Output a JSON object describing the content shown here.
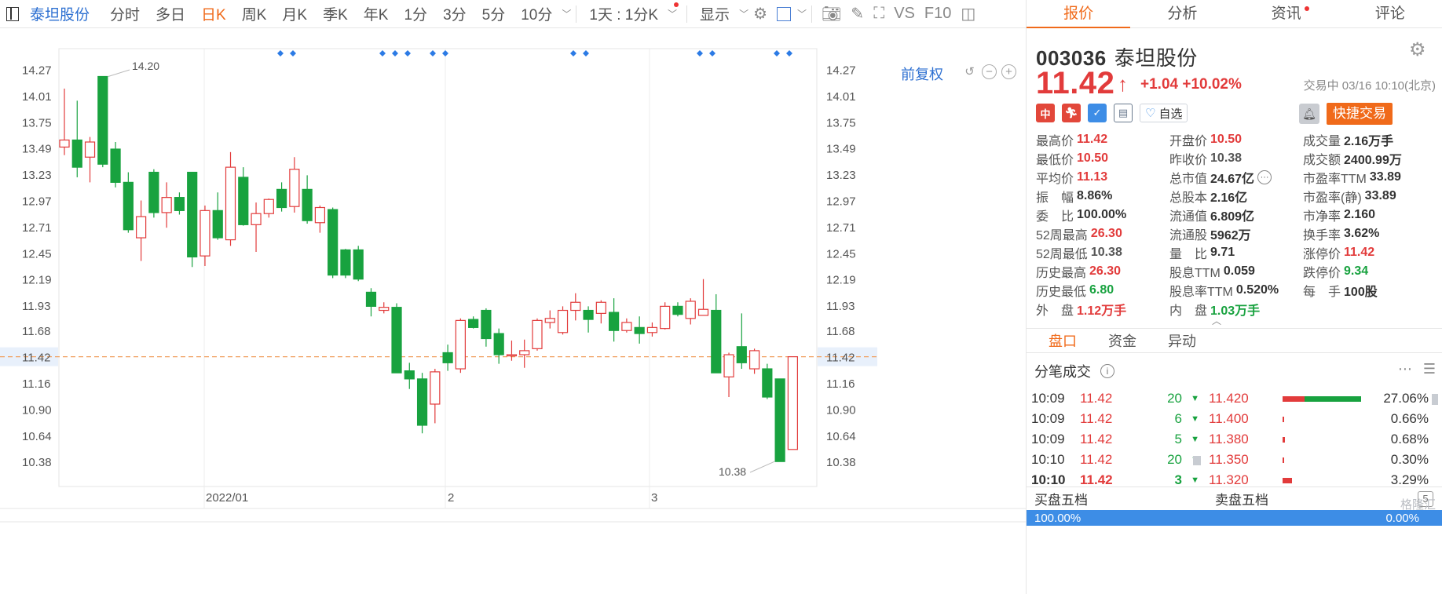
{
  "toolbar": {
    "stock_name": "泰坦股份",
    "periods": [
      "分时",
      "多日",
      "日K",
      "周K",
      "月K",
      "季K",
      "年K",
      "1分",
      "3分",
      "5分",
      "10分"
    ],
    "active_period": "日K",
    "range_select": "1天 : 1分K",
    "display": "显示",
    "vs": "VS",
    "f10": "F10"
  },
  "chart": {
    "adjust_label": "前复权",
    "high_annotation": "14.20",
    "low_annotation": "10.38",
    "current_price_label": "11.42",
    "y_ticks": [
      "14.27",
      "14.01",
      "13.75",
      "13.49",
      "13.23",
      "12.97",
      "12.71",
      "12.45",
      "12.19",
      "11.93",
      "11.68",
      "11.42",
      "11.16",
      "10.90",
      "10.64",
      "10.38"
    ],
    "x_labels": [
      "2022/01",
      "2",
      "3"
    ],
    "colors": {
      "up": "#e23b3b",
      "down": "#18a23f",
      "marker": "#2c7be5",
      "dash": "#f0a060"
    }
  },
  "chart_data": {
    "type": "candlestick",
    "ylim": [
      10.2,
      14.45
    ],
    "x_labels": [
      "2022/01",
      "2",
      "3"
    ],
    "candles": [
      {
        "o": 13.5,
        "c": 13.57,
        "h": 14.08,
        "l": 13.42
      },
      {
        "o": 13.57,
        "c": 13.3,
        "h": 13.96,
        "l": 13.2
      },
      {
        "o": 13.4,
        "c": 13.55,
        "h": 13.6,
        "l": 13.15
      },
      {
        "o": 14.2,
        "c": 13.33,
        "h": 14.2,
        "l": 13.3
      },
      {
        "o": 13.48,
        "c": 13.15,
        "h": 13.55,
        "l": 13.1
      },
      {
        "o": 13.15,
        "c": 12.68,
        "h": 13.25,
        "l": 12.65
      },
      {
        "o": 12.6,
        "c": 12.81,
        "h": 12.97,
        "l": 12.37
      },
      {
        "o": 13.25,
        "c": 12.85,
        "h": 13.28,
        "l": 12.8
      },
      {
        "o": 12.85,
        "c": 13.0,
        "h": 13.15,
        "l": 12.7
      },
      {
        "o": 13.0,
        "c": 12.87,
        "h": 13.05,
        "l": 12.83
      },
      {
        "o": 13.25,
        "c": 12.41,
        "h": 13.25,
        "l": 12.31
      },
      {
        "o": 12.42,
        "c": 12.87,
        "h": 12.92,
        "l": 12.32
      },
      {
        "o": 12.87,
        "c": 12.6,
        "h": 13.05,
        "l": 12.58
      },
      {
        "o": 12.58,
        "c": 13.3,
        "h": 13.45,
        "l": 12.52
      },
      {
        "o": 13.2,
        "c": 12.73,
        "h": 13.3,
        "l": 12.72
      },
      {
        "o": 12.73,
        "c": 12.84,
        "h": 12.95,
        "l": 12.46
      },
      {
        "o": 12.84,
        "c": 12.98,
        "h": 12.99,
        "l": 12.8
      },
      {
        "o": 13.08,
        "c": 12.9,
        "h": 13.15,
        "l": 12.86
      },
      {
        "o": 12.91,
        "c": 13.28,
        "h": 13.4,
        "l": 12.85
      },
      {
        "o": 13.08,
        "c": 12.77,
        "h": 13.22,
        "l": 12.74
      },
      {
        "o": 12.75,
        "c": 12.9,
        "h": 12.92,
        "l": 12.65
      },
      {
        "o": 12.88,
        "c": 12.23,
        "h": 12.9,
        "l": 12.2
      },
      {
        "o": 12.48,
        "c": 12.23,
        "h": 12.49,
        "l": 12.2
      },
      {
        "o": 12.48,
        "c": 12.19,
        "h": 12.52,
        "l": 12.17
      },
      {
        "o": 12.06,
        "c": 11.92,
        "h": 12.1,
        "l": 11.82
      },
      {
        "o": 11.88,
        "c": 11.91,
        "h": 11.96,
        "l": 11.85
      },
      {
        "o": 11.91,
        "c": 11.26,
        "h": 11.95,
        "l": 11.26
      },
      {
        "o": 11.28,
        "c": 11.2,
        "h": 11.36,
        "l": 11.1
      },
      {
        "o": 11.2,
        "c": 10.74,
        "h": 11.26,
        "l": 10.66
      },
      {
        "o": 10.95,
        "c": 11.27,
        "h": 11.3,
        "l": 10.76
      },
      {
        "o": 11.46,
        "c": 11.36,
        "h": 11.54,
        "l": 11.28
      },
      {
        "o": 11.3,
        "c": 11.78,
        "h": 11.8,
        "l": 11.26
      },
      {
        "o": 11.79,
        "c": 11.71,
        "h": 11.82,
        "l": 11.7
      },
      {
        "o": 11.88,
        "c": 11.6,
        "h": 11.9,
        "l": 11.52
      },
      {
        "o": 11.65,
        "c": 11.44,
        "h": 11.7,
        "l": 11.35
      },
      {
        "o": 11.44,
        "c": 11.44,
        "h": 11.58,
        "l": 11.38
      },
      {
        "o": 11.44,
        "c": 11.48,
        "h": 11.59,
        "l": 11.31
      },
      {
        "o": 11.5,
        "c": 11.78,
        "h": 11.8,
        "l": 11.48
      },
      {
        "o": 11.76,
        "c": 11.8,
        "h": 11.88,
        "l": 11.7
      },
      {
        "o": 11.66,
        "c": 11.88,
        "h": 11.92,
        "l": 11.64
      },
      {
        "o": 11.88,
        "c": 11.96,
        "h": 12.05,
        "l": 11.78
      },
      {
        "o": 11.88,
        "c": 11.79,
        "h": 11.92,
        "l": 11.66
      },
      {
        "o": 11.85,
        "c": 11.96,
        "h": 11.98,
        "l": 11.75
      },
      {
        "o": 11.86,
        "c": 11.68,
        "h": 12.0,
        "l": 11.57
      },
      {
        "o": 11.68,
        "c": 11.76,
        "h": 11.8,
        "l": 11.66
      },
      {
        "o": 11.71,
        "c": 11.65,
        "h": 11.82,
        "l": 11.55
      },
      {
        "o": 11.66,
        "c": 11.71,
        "h": 11.76,
        "l": 11.62
      },
      {
        "o": 11.7,
        "c": 11.92,
        "h": 11.96,
        "l": 11.69
      },
      {
        "o": 11.92,
        "c": 11.84,
        "h": 11.96,
        "l": 11.82
      },
      {
        "o": 11.8,
        "c": 11.97,
        "h": 12.0,
        "l": 11.74
      },
      {
        "o": 11.83,
        "c": 11.89,
        "h": 12.19,
        "l": 11.83
      },
      {
        "o": 11.88,
        "c": 11.26,
        "h": 12.04,
        "l": 11.26
      },
      {
        "o": 11.22,
        "c": 11.44,
        "h": 11.46,
        "l": 11.02
      },
      {
        "o": 11.52,
        "c": 11.36,
        "h": 11.85,
        "l": 11.3
      },
      {
        "o": 11.3,
        "c": 11.48,
        "h": 11.5,
        "l": 11.25
      },
      {
        "o": 11.3,
        "c": 11.02,
        "h": 11.35,
        "l": 11.0
      },
      {
        "o": 11.2,
        "c": 10.38,
        "h": 11.2,
        "l": 10.38
      },
      {
        "o": 10.5,
        "c": 11.42,
        "h": 11.42,
        "l": 10.5
      }
    ]
  },
  "panel": {
    "tabs": [
      "报价",
      "分析",
      "资讯",
      "评论"
    ],
    "code": "003036",
    "name": "泰坦股份",
    "price": "11.42",
    "change": "+1.04 +10.02%",
    "trade_status": "交易中 03/16 10:10(北京)",
    "badge_cn": "中",
    "badge_tag": "✓",
    "zixuan": "自选",
    "quick_trade": "快捷交易",
    "stats": [
      [
        {
          "l": "最高价",
          "v": "11.42",
          "c": "red"
        },
        {
          "l": "开盘价",
          "v": "10.50",
          "c": "red"
        },
        {
          "l": "成交量",
          "v": "2.16万手",
          "c": ""
        }
      ],
      [
        {
          "l": "最低价",
          "v": "10.50",
          "c": "red"
        },
        {
          "l": "昨收价",
          "v": "10.38",
          "c": "gray"
        },
        {
          "l": "成交额",
          "v": "2400.99万",
          "c": ""
        }
      ],
      [
        {
          "l": "平均价",
          "v": "11.13",
          "c": "red"
        },
        {
          "l": "总市值",
          "v": "24.67亿",
          "c": ""
        },
        {
          "l": "市盈率TTM",
          "v": "33.89",
          "c": ""
        }
      ],
      [
        {
          "l": "振　幅",
          "v": "8.86%",
          "c": ""
        },
        {
          "l": "总股本",
          "v": "2.16亿",
          "c": ""
        },
        {
          "l": "市盈率(静)",
          "v": "33.89",
          "c": ""
        }
      ],
      [
        {
          "l": "委　比",
          "v": "100.00%",
          "c": ""
        },
        {
          "l": "流通值",
          "v": "6.809亿",
          "c": ""
        },
        {
          "l": "市净率",
          "v": "2.160",
          "c": ""
        }
      ],
      [
        {
          "l": "52周最高",
          "v": "26.30",
          "c": "red"
        },
        {
          "l": "流通股",
          "v": "5962万",
          "c": ""
        },
        {
          "l": "换手率",
          "v": "3.62%",
          "c": ""
        }
      ],
      [
        {
          "l": "52周最低",
          "v": "10.38",
          "c": "gray"
        },
        {
          "l": "量　比",
          "v": "9.71",
          "c": ""
        },
        {
          "l": "涨停价",
          "v": "11.42",
          "c": "red"
        }
      ],
      [
        {
          "l": "历史最高",
          "v": "26.30",
          "c": "red"
        },
        {
          "l": "股息TTM",
          "v": "0.059",
          "c": ""
        },
        {
          "l": "跌停价",
          "v": "9.34",
          "c": "green"
        }
      ],
      [
        {
          "l": "历史最低",
          "v": "6.80",
          "c": "green"
        },
        {
          "l": "股息率TTM",
          "v": "0.520%",
          "c": ""
        },
        {
          "l": "每　手",
          "v": "100股",
          "c": ""
        }
      ],
      [
        {
          "l": "外　盘",
          "v": "1.12万手",
          "c": "red"
        },
        {
          "l": "内　盘",
          "v": "1.03万手",
          "c": "green"
        },
        {
          "l": "",
          "v": "",
          "c": ""
        }
      ]
    ],
    "subtabs": [
      "盘口",
      "资金",
      "异动"
    ],
    "ticks_title": "分笔成交",
    "ticks": [
      {
        "t": "10:09",
        "p": "11.42",
        "v": "20"
      },
      {
        "t": "10:09",
        "p": "11.42",
        "v": "6"
      },
      {
        "t": "10:09",
        "p": "11.42",
        "v": "5"
      },
      {
        "t": "10:10",
        "p": "11.42",
        "v": "20"
      },
      {
        "t": "10:10",
        "p": "11.42",
        "v": "3"
      }
    ],
    "distribution": [
      {
        "price": "11.420",
        "pct": "27.06%",
        "frac": 0.2706
      },
      {
        "price": "11.400",
        "pct": "0.66%",
        "frac": 0.0066
      },
      {
        "price": "11.380",
        "pct": "0.68%",
        "frac": 0.0068
      },
      {
        "price": "11.350",
        "pct": "0.30%",
        "frac": 0.003
      },
      {
        "price": "11.320",
        "pct": "3.29%",
        "frac": 0.0329
      }
    ],
    "buy5": "买盘五档",
    "sell5": "卖盘五档",
    "sicon": "5",
    "buy_pct": "100.00%",
    "sell_pct": "0.00%",
    "watermark": "格隆汇"
  }
}
